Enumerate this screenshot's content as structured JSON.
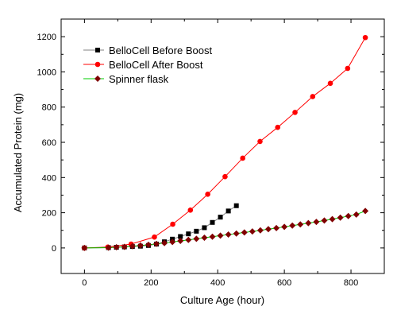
{
  "chart_data": {
    "type": "line",
    "title": "",
    "xlabel": "Culture Age (hour)",
    "ylabel": "Accumulated Protein (mg)",
    "xlim": [
      -70,
      900
    ],
    "ylim": [
      -145,
      1300
    ],
    "xticks": [
      0,
      200,
      400,
      600,
      800
    ],
    "yticks": [
      0,
      200,
      400,
      600,
      800,
      1000,
      1200
    ],
    "grid": false,
    "legend_position": "top-left",
    "series": [
      {
        "name": "BelloCell Before Boost",
        "color": "#000000",
        "line_color": "#808080",
        "marker": "square",
        "x": [
          0,
          72,
          96,
          120,
          144,
          168,
          192,
          216,
          240,
          264,
          288,
          312,
          336,
          360,
          384,
          408,
          432,
          456
        ],
        "y": [
          0,
          2,
          4,
          6,
          8,
          10,
          14,
          22,
          35,
          50,
          65,
          80,
          95,
          115,
          145,
          175,
          210,
          240
        ]
      },
      {
        "name": "BelloCell After Boost",
        "color": "#ff0000",
        "line_color": "#ff0000",
        "marker": "circle",
        "x": [
          0,
          70,
          140,
          210,
          265,
          318,
          370,
          422,
          475,
          527,
          580,
          632,
          685,
          738,
          790,
          843
        ],
        "y": [
          0,
          5,
          22,
          62,
          135,
          215,
          305,
          405,
          510,
          605,
          685,
          770,
          860,
          935,
          1020,
          1195
        ]
      },
      {
        "name": "Spinner flask",
        "color": "#800000",
        "line_color": "#00cc00",
        "marker": "diamond",
        "x": [
          0,
          72,
          96,
          120,
          144,
          168,
          192,
          216,
          240,
          264,
          288,
          312,
          336,
          360,
          384,
          408,
          432,
          456,
          480,
          504,
          528,
          552,
          576,
          600,
          624,
          648,
          672,
          696,
          720,
          744,
          768,
          792,
          816,
          843
        ],
        "y": [
          0,
          2,
          4,
          6,
          10,
          14,
          18,
          23,
          28,
          34,
          40,
          46,
          52,
          58,
          64,
          70,
          76,
          82,
          88,
          94,
          100,
          107,
          113,
          120,
          127,
          134,
          141,
          148,
          156,
          164,
          172,
          181,
          190,
          210
        ]
      }
    ]
  }
}
